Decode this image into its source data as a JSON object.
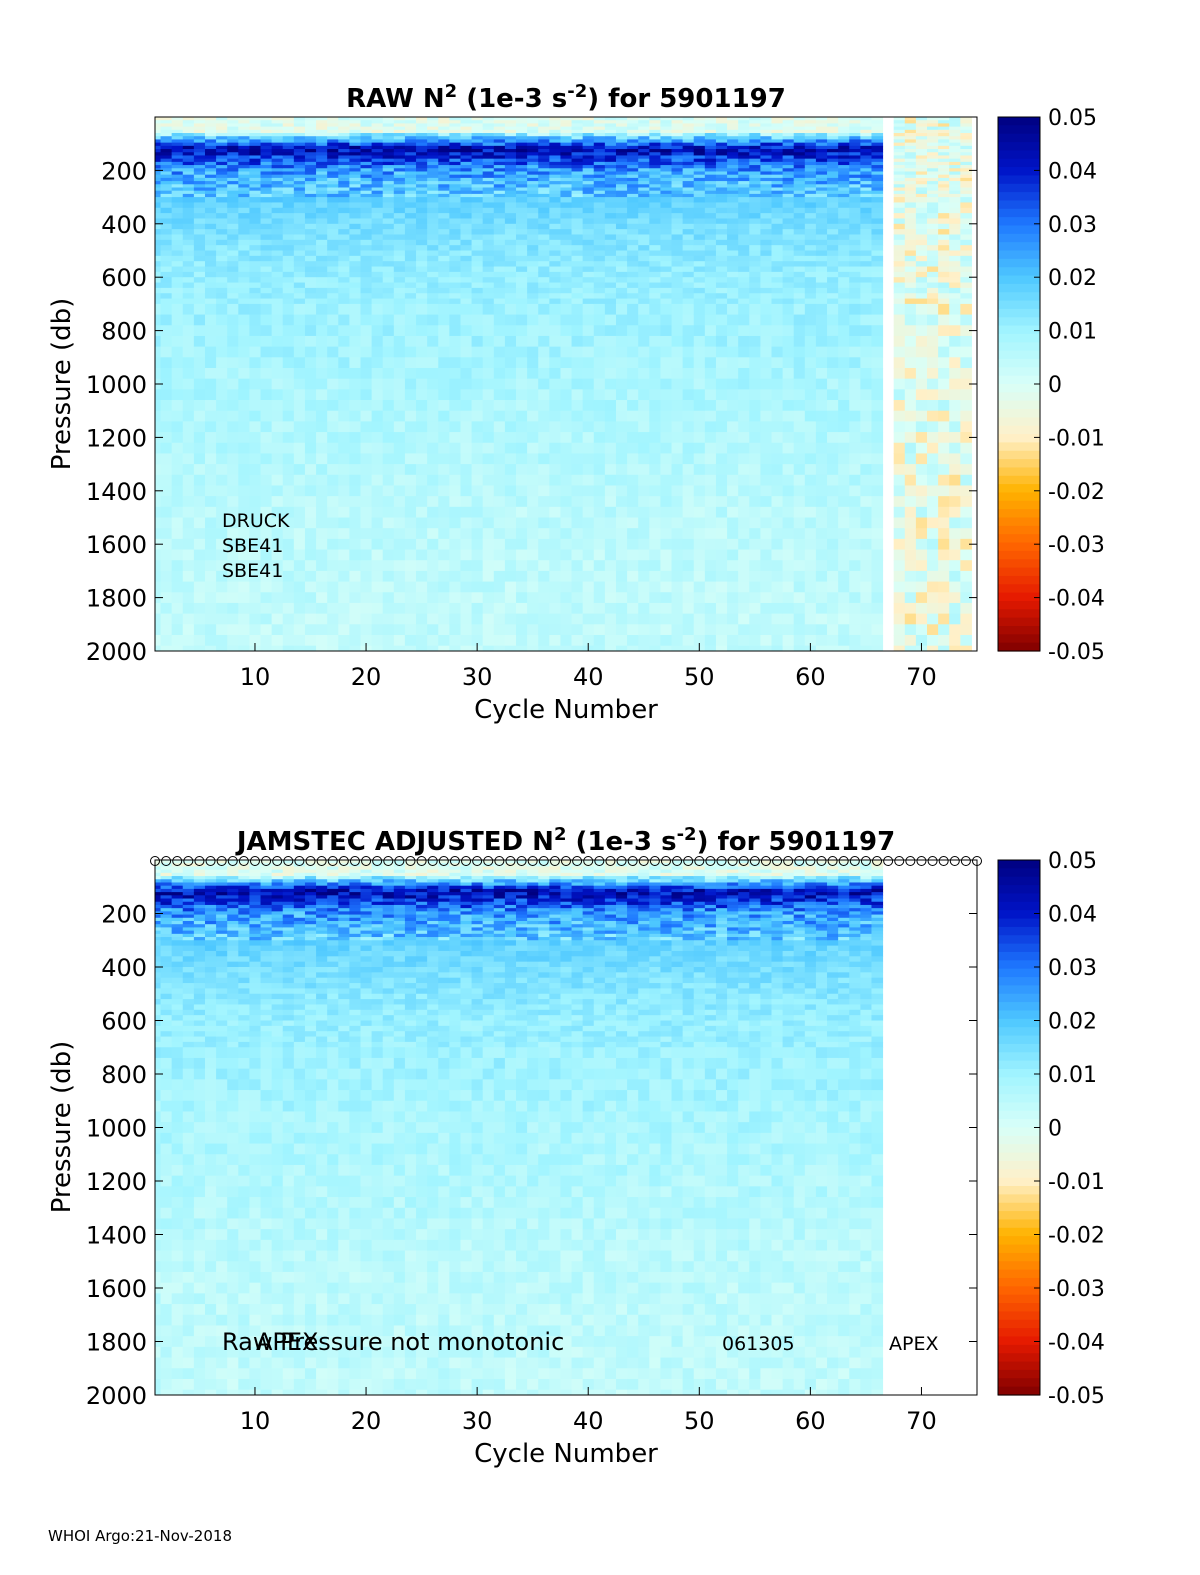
{
  "footer": "WHOI Argo:21-Nov-2018",
  "colormap": [
    "#800000",
    "#e61a00",
    "#ff6600",
    "#ffb300",
    "#fff0c8",
    "#d8fff8",
    "#a0f4ff",
    "#4ec8ff",
    "#1e78ff",
    "#0014c8",
    "#000080"
  ],
  "chart_data": [
    {
      "type": "heatmap",
      "title": "RAW N",
      "title_sup1": "2",
      "title_mid": " (1e-3 s",
      "title_sup2": "-2",
      "title_end": ") for 5901197",
      "xlabel": "Cycle Number",
      "ylabel": "Pressure (db)",
      "xlim": [
        1,
        75
      ],
      "ylim": [
        2000,
        0
      ],
      "xticks": [
        10,
        20,
        30,
        40,
        50,
        60,
        70
      ],
      "yticks": [
        200,
        400,
        600,
        800,
        1000,
        1200,
        1400,
        1600,
        1800,
        2000
      ],
      "color_range": [
        -0.05,
        0.05
      ],
      "colorbar_ticks": [
        "0.05",
        "0.04",
        "0.03",
        "0.02",
        "0.01",
        "0",
        "-0.01",
        "-0.02",
        "-0.03",
        "-0.04",
        "-0.05"
      ],
      "cycles_with_data": [
        1,
        66
      ],
      "extra_cycles": [
        68,
        69,
        70,
        71,
        72,
        73,
        74
      ],
      "annotations": [
        "DRUCK",
        "SBE41",
        "SBE41"
      ],
      "stratification_profile": [
        {
          "pressure": 50,
          "n2": 0.0
        },
        {
          "pressure": 120,
          "n2": 0.045
        },
        {
          "pressure": 200,
          "n2": 0.025
        },
        {
          "pressure": 300,
          "n2": 0.018
        },
        {
          "pressure": 400,
          "n2": 0.015
        },
        {
          "pressure": 600,
          "n2": 0.011
        },
        {
          "pressure": 1000,
          "n2": 0.008
        },
        {
          "pressure": 1500,
          "n2": 0.005
        },
        {
          "pressure": 2000,
          "n2": 0.004
        }
      ]
    },
    {
      "type": "heatmap",
      "title": "JAMSTEC  ADJUSTED N",
      "title_sup1": "2",
      "title_mid": " (1e-3 s",
      "title_sup2": "-2",
      "title_end": ") for 5901197",
      "xlabel": "Cycle Number",
      "ylabel": "Pressure (db)",
      "xlim": [
        1,
        75
      ],
      "ylim": [
        2000,
        0
      ],
      "xticks": [
        10,
        20,
        30,
        40,
        50,
        60,
        70
      ],
      "yticks": [
        200,
        400,
        600,
        800,
        1000,
        1200,
        1400,
        1600,
        1800,
        2000
      ],
      "color_range": [
        -0.05,
        0.05
      ],
      "colorbar_ticks": [
        "0.05",
        "0.04",
        "0.03",
        "0.02",
        "0.01",
        "0",
        "-0.01",
        "-0.02",
        "-0.03",
        "-0.04",
        "-0.05"
      ],
      "cycles_with_data": [
        1,
        66
      ],
      "flag_marker_cycles": [
        1,
        75
      ],
      "annotations": [
        "Raw Pressure not monotonic",
        "APEX",
        "061305",
        "APEX"
      ],
      "stratification_profile": [
        {
          "pressure": 50,
          "n2": 0.0
        },
        {
          "pressure": 120,
          "n2": 0.045
        },
        {
          "pressure": 200,
          "n2": 0.025
        },
        {
          "pressure": 300,
          "n2": 0.018
        },
        {
          "pressure": 400,
          "n2": 0.015
        },
        {
          "pressure": 600,
          "n2": 0.011
        },
        {
          "pressure": 1000,
          "n2": 0.008
        },
        {
          "pressure": 1500,
          "n2": 0.005
        },
        {
          "pressure": 2000,
          "n2": 0.004
        }
      ]
    }
  ]
}
